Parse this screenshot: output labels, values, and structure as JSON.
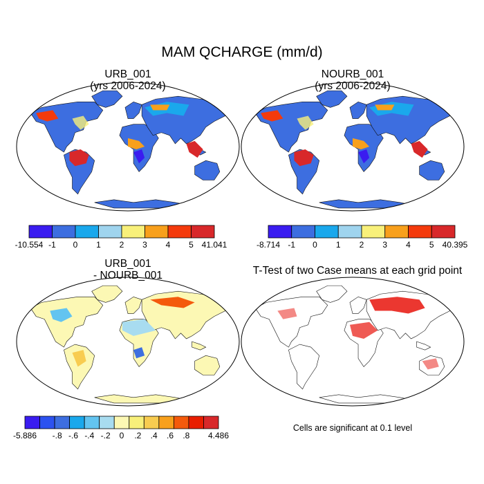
{
  "figure": {
    "title": "MAM QCHARGE (mm/d)",
    "footnote": "Cells are significant at 0.1 level"
  },
  "panels": [
    {
      "title_line1": "URB_001",
      "title_line2": "(yrs 2006-2024)",
      "colorbar": {
        "colors": [
          "#3a1cf0",
          "#3d6ee0",
          "#1aa8ec",
          "#9fd4ee",
          "#f8f07a",
          "#f8a01c",
          "#f43a0c",
          "#d8282a"
        ],
        "labels": [
          "-10.554",
          "-1",
          "0",
          "1",
          "2",
          "3",
          "4",
          "5",
          "41.041"
        ]
      }
    },
    {
      "title_line1": "NOURB_001",
      "title_line2": "(yrs 2006-2024)",
      "colorbar": {
        "colors": [
          "#3a1cf0",
          "#3d6ee0",
          "#1aa8ec",
          "#9fd4ee",
          "#f8f07a",
          "#f8a01c",
          "#f43a0c",
          "#d8282a"
        ],
        "labels": [
          "-8.714",
          "-1",
          "0",
          "1",
          "2",
          "3",
          "4",
          "5",
          "40.395"
        ]
      }
    },
    {
      "title_line1": "URB_001",
      "title_line2": "- NOURB_001",
      "colorbar": {
        "colors": [
          "#3a1cf0",
          "#2c52f0",
          "#3d6ee0",
          "#1aa8ec",
          "#63c4f0",
          "#a8dcf0",
          "#fcf8b4",
          "#f8f07a",
          "#f8cc50",
          "#f8a01c",
          "#f45a0c",
          "#e81e00",
          "#d8282a"
        ],
        "labels": [
          "-5.886",
          "",
          "-.8",
          "-.6",
          "-.4",
          "-.2",
          "0",
          ".2",
          ".4",
          ".6",
          ".8",
          "",
          "4.486"
        ]
      }
    },
    {
      "title_line1": "T-Test of two Case means at each grid point"
    }
  ]
}
